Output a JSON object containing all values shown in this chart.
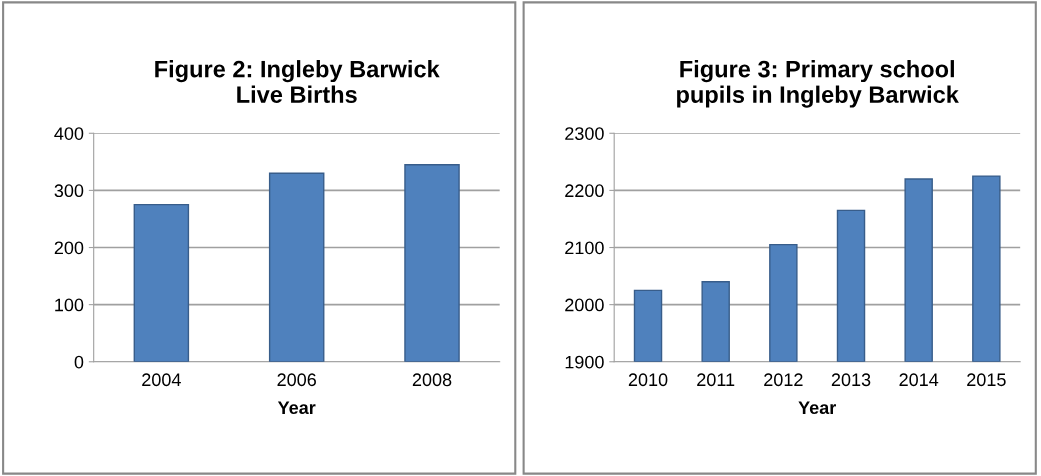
{
  "chart_data": [
    {
      "type": "bar",
      "title": "Figure 2: Ingleby Barwick\nLive Births",
      "xlabel": "Year",
      "categories": [
        "2004",
        "2006",
        "2008"
      ],
      "values": [
        275,
        330,
        345
      ],
      "color": "#4f81bd",
      "ylim": [
        0,
        400
      ],
      "yticks": [
        0,
        100,
        200,
        300,
        400
      ],
      "grid": "y"
    },
    {
      "type": "bar",
      "title": "Figure 3: Primary school\npupils in Ingleby Barwick",
      "xlabel": "Year",
      "categories": [
        "2010",
        "2011",
        "2012",
        "2013",
        "2014",
        "2015"
      ],
      "values": [
        2025,
        2040,
        2105,
        2165,
        2220,
        2225
      ],
      "color": "#4f81bd",
      "ylim": [
        1900,
        2300
      ],
      "yticks": [
        1900,
        2000,
        2100,
        2200,
        2300
      ],
      "grid": "y"
    }
  ]
}
